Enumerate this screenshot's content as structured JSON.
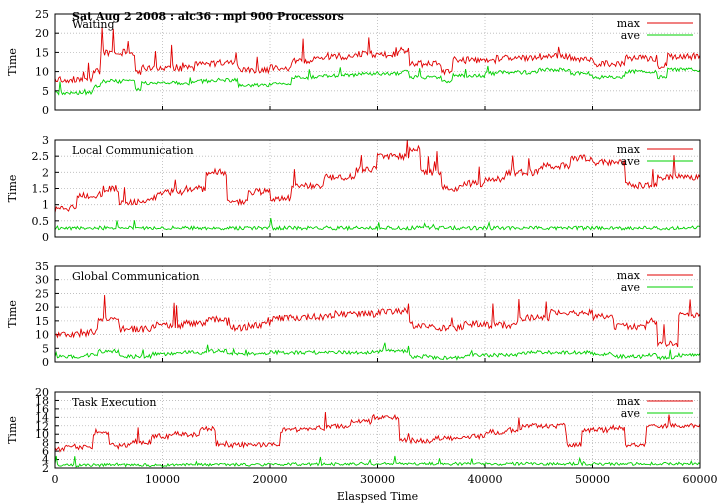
{
  "figure_title": "Sat Aug 2 2008 : alc36 : mpi 900 Processors",
  "xlabel": "Elaspsed Time",
  "x_ticks": [
    "0",
    "10000",
    "20000",
    "30000",
    "40000",
    "50000",
    "60000"
  ],
  "colors": {
    "max": "#e00000",
    "ave": "#00d000",
    "grid": "#b8b8b8"
  },
  "chart_data": [
    {
      "type": "line",
      "title": "Waiting",
      "ylabel": "Time",
      "ylim": [
        0,
        25
      ],
      "y_ticks": [
        0,
        5,
        10,
        15,
        20,
        25
      ],
      "xlim": [
        0,
        60000
      ],
      "grid": true,
      "legend": "top-right",
      "x": [
        0,
        3500,
        4200,
        7500,
        8000,
        13000,
        15000,
        17000,
        20000,
        22000,
        25000,
        28000,
        32000,
        33000,
        36000,
        37000,
        40000,
        41000,
        45000,
        48000,
        50000,
        53000,
        56000,
        57000,
        60000
      ],
      "series": [
        {
          "name": "max",
          "values": [
            8,
            10,
            15,
            9.5,
            11,
            12,
            12.5,
            10.5,
            11,
            13,
            14,
            14.5,
            15.5,
            12,
            10,
            13,
            12.5,
            13.5,
            14,
            13,
            12,
            13.5,
            11.5,
            14,
            15
          ]
        },
        {
          "name": "ave",
          "values": [
            4.5,
            6,
            7.5,
            5.5,
            7,
            7.5,
            7.8,
            6.5,
            6.8,
            8.5,
            9,
            9.5,
            10,
            8.5,
            7.5,
            9,
            9.5,
            9.8,
            10.5,
            9.5,
            8.5,
            10,
            8.5,
            10.5,
            11
          ]
        }
      ]
    },
    {
      "type": "line",
      "title": "Local Communication",
      "ylabel": "Time",
      "ylim": [
        0,
        3
      ],
      "y_ticks": [
        0,
        0.5,
        1,
        1.5,
        2,
        2.5,
        3
      ],
      "xlim": [
        0,
        60000
      ],
      "grid": true,
      "legend": "top-right",
      "x": [
        0,
        1500,
        2000,
        4500,
        6000,
        8500,
        9500,
        12000,
        14000,
        16000,
        18000,
        20000,
        22000,
        25000,
        28000,
        30000,
        33000,
        34000,
        36000,
        38000,
        40000,
        42000,
        45000,
        48000,
        50000,
        53000,
        56000,
        60000
      ],
      "series": [
        {
          "name": "max",
          "values": [
            0.85,
            0.9,
            1.3,
            1.5,
            1.1,
            1.2,
            1.4,
            1.5,
            2.0,
            1.1,
            1.4,
            1.2,
            1.6,
            1.85,
            2.1,
            2.5,
            2.75,
            2.0,
            1.5,
            1.65,
            1.8,
            2.0,
            2.2,
            2.45,
            2.3,
            1.6,
            1.85,
            1.9
          ]
        },
        {
          "name": "ave",
          "values": [
            0.28,
            0.28,
            0.28,
            0.28,
            0.28,
            0.28,
            0.28,
            0.28,
            0.28,
            0.28,
            0.28,
            0.28,
            0.28,
            0.28,
            0.28,
            0.28,
            0.28,
            0.28,
            0.28,
            0.28,
            0.28,
            0.28,
            0.28,
            0.28,
            0.28,
            0.28,
            0.28,
            0.28
          ]
        }
      ]
    },
    {
      "type": "line",
      "title": "Global Communication",
      "ylabel": "Time",
      "ylim": [
        0,
        35
      ],
      "y_ticks": [
        0,
        5,
        10,
        15,
        20,
        25,
        30,
        35
      ],
      "xlim": [
        0,
        60000
      ],
      "grid": true,
      "legend": "top-right",
      "x": [
        0,
        3000,
        4000,
        6000,
        9000,
        12000,
        14000,
        16000,
        18000,
        20000,
        23000,
        26000,
        30000,
        33000,
        35000,
        38000,
        40000,
        43000,
        46000,
        50000,
        52000,
        55000,
        56000,
        58000,
        60000
      ],
      "series": [
        {
          "name": "max",
          "values": [
            10,
            11,
            15,
            12,
            13.5,
            14,
            15.5,
            12.5,
            13.5,
            16,
            16.5,
            17.5,
            18.5,
            13.5,
            12.5,
            14,
            13.5,
            16,
            18,
            16.5,
            13,
            15,
            6.5,
            17,
            18
          ]
        },
        {
          "name": "ave",
          "values": [
            2,
            2.5,
            4,
            2,
            3,
            3.5,
            4,
            3,
            3,
            3.5,
            3.5,
            3.5,
            4,
            2,
            1.5,
            2.5,
            2.5,
            3.5,
            3.5,
            3,
            2,
            2.5,
            1.5,
            2.5,
            3
          ]
        }
      ]
    },
    {
      "type": "line",
      "title": "Task Execution",
      "ylabel": "Time",
      "ylim": [
        2,
        20
      ],
      "y_ticks": [
        2,
        4,
        6,
        8,
        10,
        12,
        14,
        16,
        18,
        20
      ],
      "xlim": [
        0,
        60000
      ],
      "grid": true,
      "legend": "top-right",
      "x": [
        0,
        1000,
        3500,
        5000,
        7000,
        9000,
        11000,
        13500,
        15000,
        19000,
        21000,
        23000,
        25500,
        27500,
        29500,
        32000,
        35000,
        38000,
        40000,
        42000,
        43500,
        45500,
        47500,
        49000,
        51500,
        53000,
        55000
      ],
      "series": [
        {
          "name": "max",
          "values": [
            6.5,
            7,
            10,
            7.2,
            8.2,
            9.5,
            10,
            11.2,
            7.5,
            7.6,
            11,
            11.5,
            12,
            13,
            14,
            8.5,
            9,
            9.5,
            10.5,
            11,
            12,
            12,
            7.5,
            11,
            11.5,
            7.5,
            12
          ]
        },
        {
          "name": "ave",
          "values": [
            2.6,
            2.6,
            2.7,
            2.7,
            2.7,
            2.7,
            2.8,
            2.8,
            2.8,
            2.8,
            2.9,
            2.9,
            2.9,
            3.0,
            3.0,
            3.0,
            3.0,
            3.0,
            3.0,
            3.0,
            3.0,
            3.0,
            3.0,
            3.0,
            3.0,
            3.0,
            3.0
          ]
        }
      ]
    }
  ]
}
